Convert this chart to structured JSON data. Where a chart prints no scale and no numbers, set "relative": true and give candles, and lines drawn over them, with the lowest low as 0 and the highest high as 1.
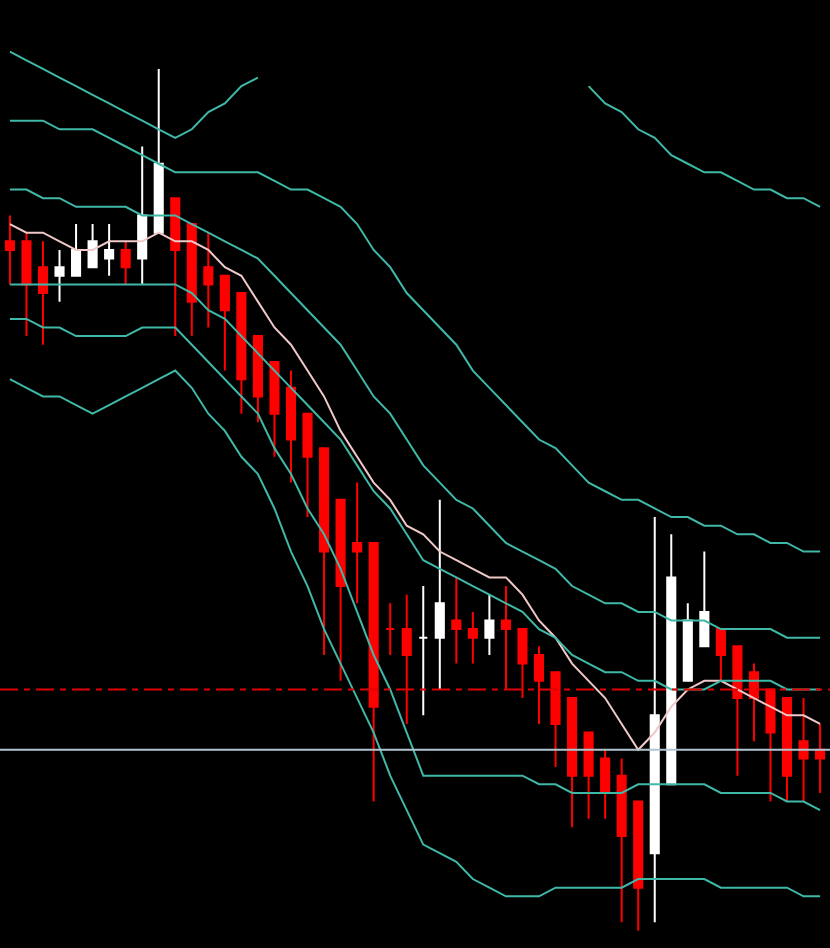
{
  "chart_data": {
    "type": "candlestick",
    "relative": true,
    "categories": [
      null,
      null,
      null,
      null,
      null,
      null,
      null,
      null,
      null,
      null,
      null,
      null,
      null,
      null,
      null,
      null,
      null,
      null,
      null,
      null,
      null,
      null,
      null,
      null,
      null,
      null,
      null,
      null,
      null,
      null,
      null,
      null,
      null,
      null,
      null,
      null,
      null,
      null,
      null,
      null,
      null,
      null,
      null,
      null,
      null,
      null,
      null,
      null,
      null,
      null
    ],
    "ohlc": [
      [
        0.8,
        0.83,
        0.75,
        0.79
      ],
      [
        0.8,
        0.81,
        0.69,
        0.75
      ],
      [
        0.77,
        0.8,
        0.68,
        0.74
      ],
      [
        0.76,
        0.79,
        0.73,
        0.77
      ],
      [
        0.76,
        0.82,
        0.76,
        0.79
      ],
      [
        0.77,
        0.82,
        0.77,
        0.8
      ],
      [
        0.78,
        0.82,
        0.76,
        0.79
      ],
      [
        0.79,
        0.8,
        0.75,
        0.77
      ],
      [
        0.78,
        0.91,
        0.75,
        0.83
      ],
      [
        0.81,
        1,
        0.81,
        0.89
      ],
      [
        0.85,
        0.85,
        0.69,
        0.79
      ],
      [
        0.82,
        0.82,
        0.69,
        0.73
      ],
      [
        0.77,
        0.81,
        0.7,
        0.75
      ],
      [
        0.76,
        0.76,
        0.65,
        0.72
      ],
      [
        0.74,
        0.74,
        0.6,
        0.64
      ],
      [
        0.69,
        0.69,
        0.59,
        0.62
      ],
      [
        0.66,
        0.66,
        0.55,
        0.6
      ],
      [
        0.63,
        0.65,
        0.52,
        0.57
      ],
      [
        0.6,
        0.6,
        0.48,
        0.55
      ],
      [
        0.56,
        0.56,
        0.32,
        0.44
      ],
      [
        0.5,
        0.5,
        0.29,
        0.4
      ],
      [
        0.45,
        0.52,
        0.38,
        0.44
      ],
      [
        0.45,
        0.45,
        0.15,
        0.26
      ],
      [
        0.35,
        0.38,
        0.32,
        0.35
      ],
      [
        0.35,
        0.39,
        0.24,
        0.32
      ],
      [
        0.34,
        0.4,
        0.25,
        0.34
      ],
      [
        0.34,
        0.5,
        0.28,
        0.38
      ],
      [
        0.36,
        0.41,
        0.31,
        0.35
      ],
      [
        0.35,
        0.37,
        0.31,
        0.34
      ],
      [
        0.34,
        0.39,
        0.32,
        0.36
      ],
      [
        0.36,
        0.4,
        0.28,
        0.35
      ],
      [
        0.35,
        0.35,
        0.27,
        0.31
      ],
      [
        0.32,
        0.33,
        0.24,
        0.29
      ],
      [
        0.3,
        0.3,
        0.19,
        0.24
      ],
      [
        0.27,
        0.27,
        0.12,
        0.18
      ],
      [
        0.23,
        0.23,
        0.13,
        0.18
      ],
      [
        0.2,
        0.21,
        0.13,
        0.16
      ],
      [
        0.18,
        0.2,
        0.01,
        0.11
      ],
      [
        0.15,
        0.15,
        0,
        0.05
      ],
      [
        0.09,
        0.48,
        0.01,
        0.25
      ],
      [
        0.17,
        0.46,
        0.17,
        0.41
      ],
      [
        0.29,
        0.38,
        0.29,
        0.36
      ],
      [
        0.33,
        0.44,
        0.33,
        0.37
      ],
      [
        0.35,
        0.35,
        0.29,
        0.32
      ],
      [
        0.33,
        0.33,
        0.18,
        0.27
      ],
      [
        0.3,
        0.31,
        0.22,
        0.27
      ],
      [
        0.28,
        0.28,
        0.15,
        0.23
      ],
      [
        0.27,
        0.27,
        0.15,
        0.18
      ],
      [
        0.22,
        0.27,
        0.15,
        0.2
      ],
      [
        0.21,
        0.24,
        0.16,
        0.2
      ]
    ],
    "colors": [
      "#ff0000",
      "#ff0000",
      "#ff0000",
      "#ffffff",
      "#ffffff",
      "#ffffff",
      "#ffffff",
      "#ff0000",
      "#ffffff",
      "#ffffff",
      "#ff0000",
      "#ff0000",
      "#ff0000",
      "#ff0000",
      "#ff0000",
      "#ff0000",
      "#ff0000",
      "#ff0000",
      "#ff0000",
      "#ff0000",
      "#ff0000",
      "#ff0000",
      "#ff0000",
      "#ff0000",
      "#ff0000",
      "#ffffff",
      "#ffffff",
      "#ff0000",
      "#ff0000",
      "#ffffff",
      "#ff0000",
      "#ff0000",
      "#ff0000",
      "#ff0000",
      "#ff0000",
      "#ff0000",
      "#ff0000",
      "#ff0000",
      "#ff0000",
      "#ffffff",
      "#ffffff",
      "#ffffff",
      "#ffffff",
      "#ff0000",
      "#ff0000",
      "#ff0000",
      "#ff0000",
      "#ff0000",
      "#ff0000",
      "#ff0000"
    ],
    "series": [
      {
        "type": "line",
        "color": "#40b8a8",
        "values": [
          1.02,
          1.01,
          1.0,
          0.99,
          0.98,
          0.97,
          0.96,
          0.95,
          0.94,
          0.93,
          0.92,
          0.93,
          0.95,
          0.96,
          0.98,
          0.99,
          null,
          null,
          null,
          null,
          null,
          null,
          null,
          null,
          null,
          null,
          null,
          null,
          null,
          null,
          null,
          null,
          null,
          null,
          null,
          0.98,
          0.96,
          0.95,
          0.93,
          0.92,
          0.9,
          0.89,
          0.88,
          0.88,
          0.87,
          0.86,
          0.86,
          0.85,
          0.85,
          0.84
        ]
      },
      {
        "type": "line",
        "color": "#40b8a8",
        "values": [
          0.94,
          0.94,
          0.94,
          0.93,
          0.93,
          0.93,
          0.92,
          0.91,
          0.9,
          0.89,
          0.88,
          0.88,
          0.88,
          0.88,
          0.88,
          0.88,
          0.87,
          0.86,
          0.86,
          0.85,
          0.84,
          0.82,
          0.79,
          0.77,
          0.74,
          0.72,
          0.7,
          0.68,
          0.65,
          0.63,
          0.61,
          0.59,
          0.57,
          0.56,
          0.54,
          0.52,
          0.51,
          0.5,
          0.5,
          0.49,
          0.48,
          0.48,
          0.47,
          0.47,
          0.46,
          0.46,
          0.45,
          0.45,
          0.44,
          0.44
        ]
      },
      {
        "type": "line",
        "color": "#40b8a8",
        "values": [
          0.86,
          0.86,
          0.85,
          0.85,
          0.84,
          0.84,
          0.84,
          0.84,
          0.83,
          0.83,
          0.83,
          0.82,
          0.81,
          0.8,
          0.79,
          0.78,
          0.76,
          0.74,
          0.72,
          0.7,
          0.68,
          0.65,
          0.62,
          0.6,
          0.57,
          0.54,
          0.52,
          0.5,
          0.49,
          0.47,
          0.45,
          0.44,
          0.43,
          0.42,
          0.4,
          0.39,
          0.38,
          0.38,
          0.37,
          0.37,
          0.36,
          0.36,
          0.36,
          0.35,
          0.35,
          0.35,
          0.35,
          0.34,
          0.34,
          0.34
        ]
      },
      {
        "type": "line",
        "color": "#f0c8c8",
        "values": [
          0.82,
          0.81,
          0.81,
          0.8,
          0.79,
          0.79,
          0.8,
          0.8,
          0.8,
          0.81,
          0.8,
          0.8,
          0.79,
          0.77,
          0.76,
          0.73,
          0.7,
          0.68,
          0.65,
          0.62,
          0.58,
          0.55,
          0.52,
          0.5,
          0.47,
          0.46,
          0.44,
          0.43,
          0.42,
          0.41,
          0.41,
          0.39,
          0.36,
          0.34,
          0.31,
          0.29,
          0.27,
          0.24,
          0.21,
          0.23,
          0.26,
          0.28,
          0.29,
          0.29,
          0.28,
          0.27,
          0.26,
          0.25,
          0.25,
          0.24
        ]
      },
      {
        "type": "line",
        "color": "#40b8a8",
        "values": [
          0.75,
          0.75,
          0.75,
          0.75,
          0.75,
          0.75,
          0.75,
          0.75,
          0.75,
          0.75,
          0.75,
          0.74,
          0.72,
          0.71,
          0.69,
          0.67,
          0.65,
          0.63,
          0.61,
          0.59,
          0.57,
          0.54,
          0.51,
          0.49,
          0.46,
          0.43,
          0.42,
          0.41,
          0.4,
          0.39,
          0.38,
          0.37,
          0.35,
          0.34,
          0.32,
          0.31,
          0.3,
          0.3,
          0.29,
          0.29,
          0.28,
          0.28,
          0.28,
          0.29,
          0.29,
          0.29,
          0.29,
          0.28,
          0.28,
          0.28
        ]
      },
      {
        "type": "line",
        "color": "#40b8a8",
        "values": [
          0.71,
          0.71,
          0.7,
          0.7,
          0.69,
          0.69,
          0.69,
          0.69,
          0.7,
          0.7,
          0.7,
          0.68,
          0.66,
          0.64,
          0.62,
          0.6,
          0.56,
          0.53,
          0.49,
          0.46,
          0.42,
          0.37,
          0.32,
          0.28,
          0.23,
          0.18,
          0.18,
          0.18,
          0.18,
          0.18,
          0.18,
          0.18,
          0.17,
          0.17,
          0.16,
          0.16,
          0.16,
          0.16,
          0.17,
          0.17,
          0.17,
          0.17,
          0.17,
          0.16,
          0.16,
          0.16,
          0.16,
          0.15,
          0.15,
          0.14
        ]
      },
      {
        "type": "line",
        "color": "#40b8a8",
        "values": [
          0.64,
          0.63,
          0.62,
          0.62,
          0.61,
          0.6,
          0.61,
          0.62,
          0.63,
          0.64,
          0.65,
          0.63,
          0.6,
          0.58,
          0.55,
          0.53,
          0.49,
          0.44,
          0.4,
          0.35,
          0.31,
          0.27,
          0.23,
          0.18,
          0.14,
          0.1,
          0.09,
          0.08,
          0.06,
          0.05,
          0.04,
          0.04,
          0.04,
          0.05,
          0.05,
          0.05,
          0.05,
          0.05,
          0.06,
          0.06,
          0.06,
          0.06,
          0.06,
          0.05,
          0.05,
          0.05,
          0.05,
          0.05,
          0.04,
          0.04
        ]
      }
    ],
    "ref_lines": [
      {
        "axis": "y",
        "value": 0.28,
        "color": "#e00000",
        "line_style": "dashed"
      },
      {
        "axis": "y",
        "value": 0.21,
        "color": "#b0c4d0",
        "line_style": "solid"
      }
    ]
  }
}
